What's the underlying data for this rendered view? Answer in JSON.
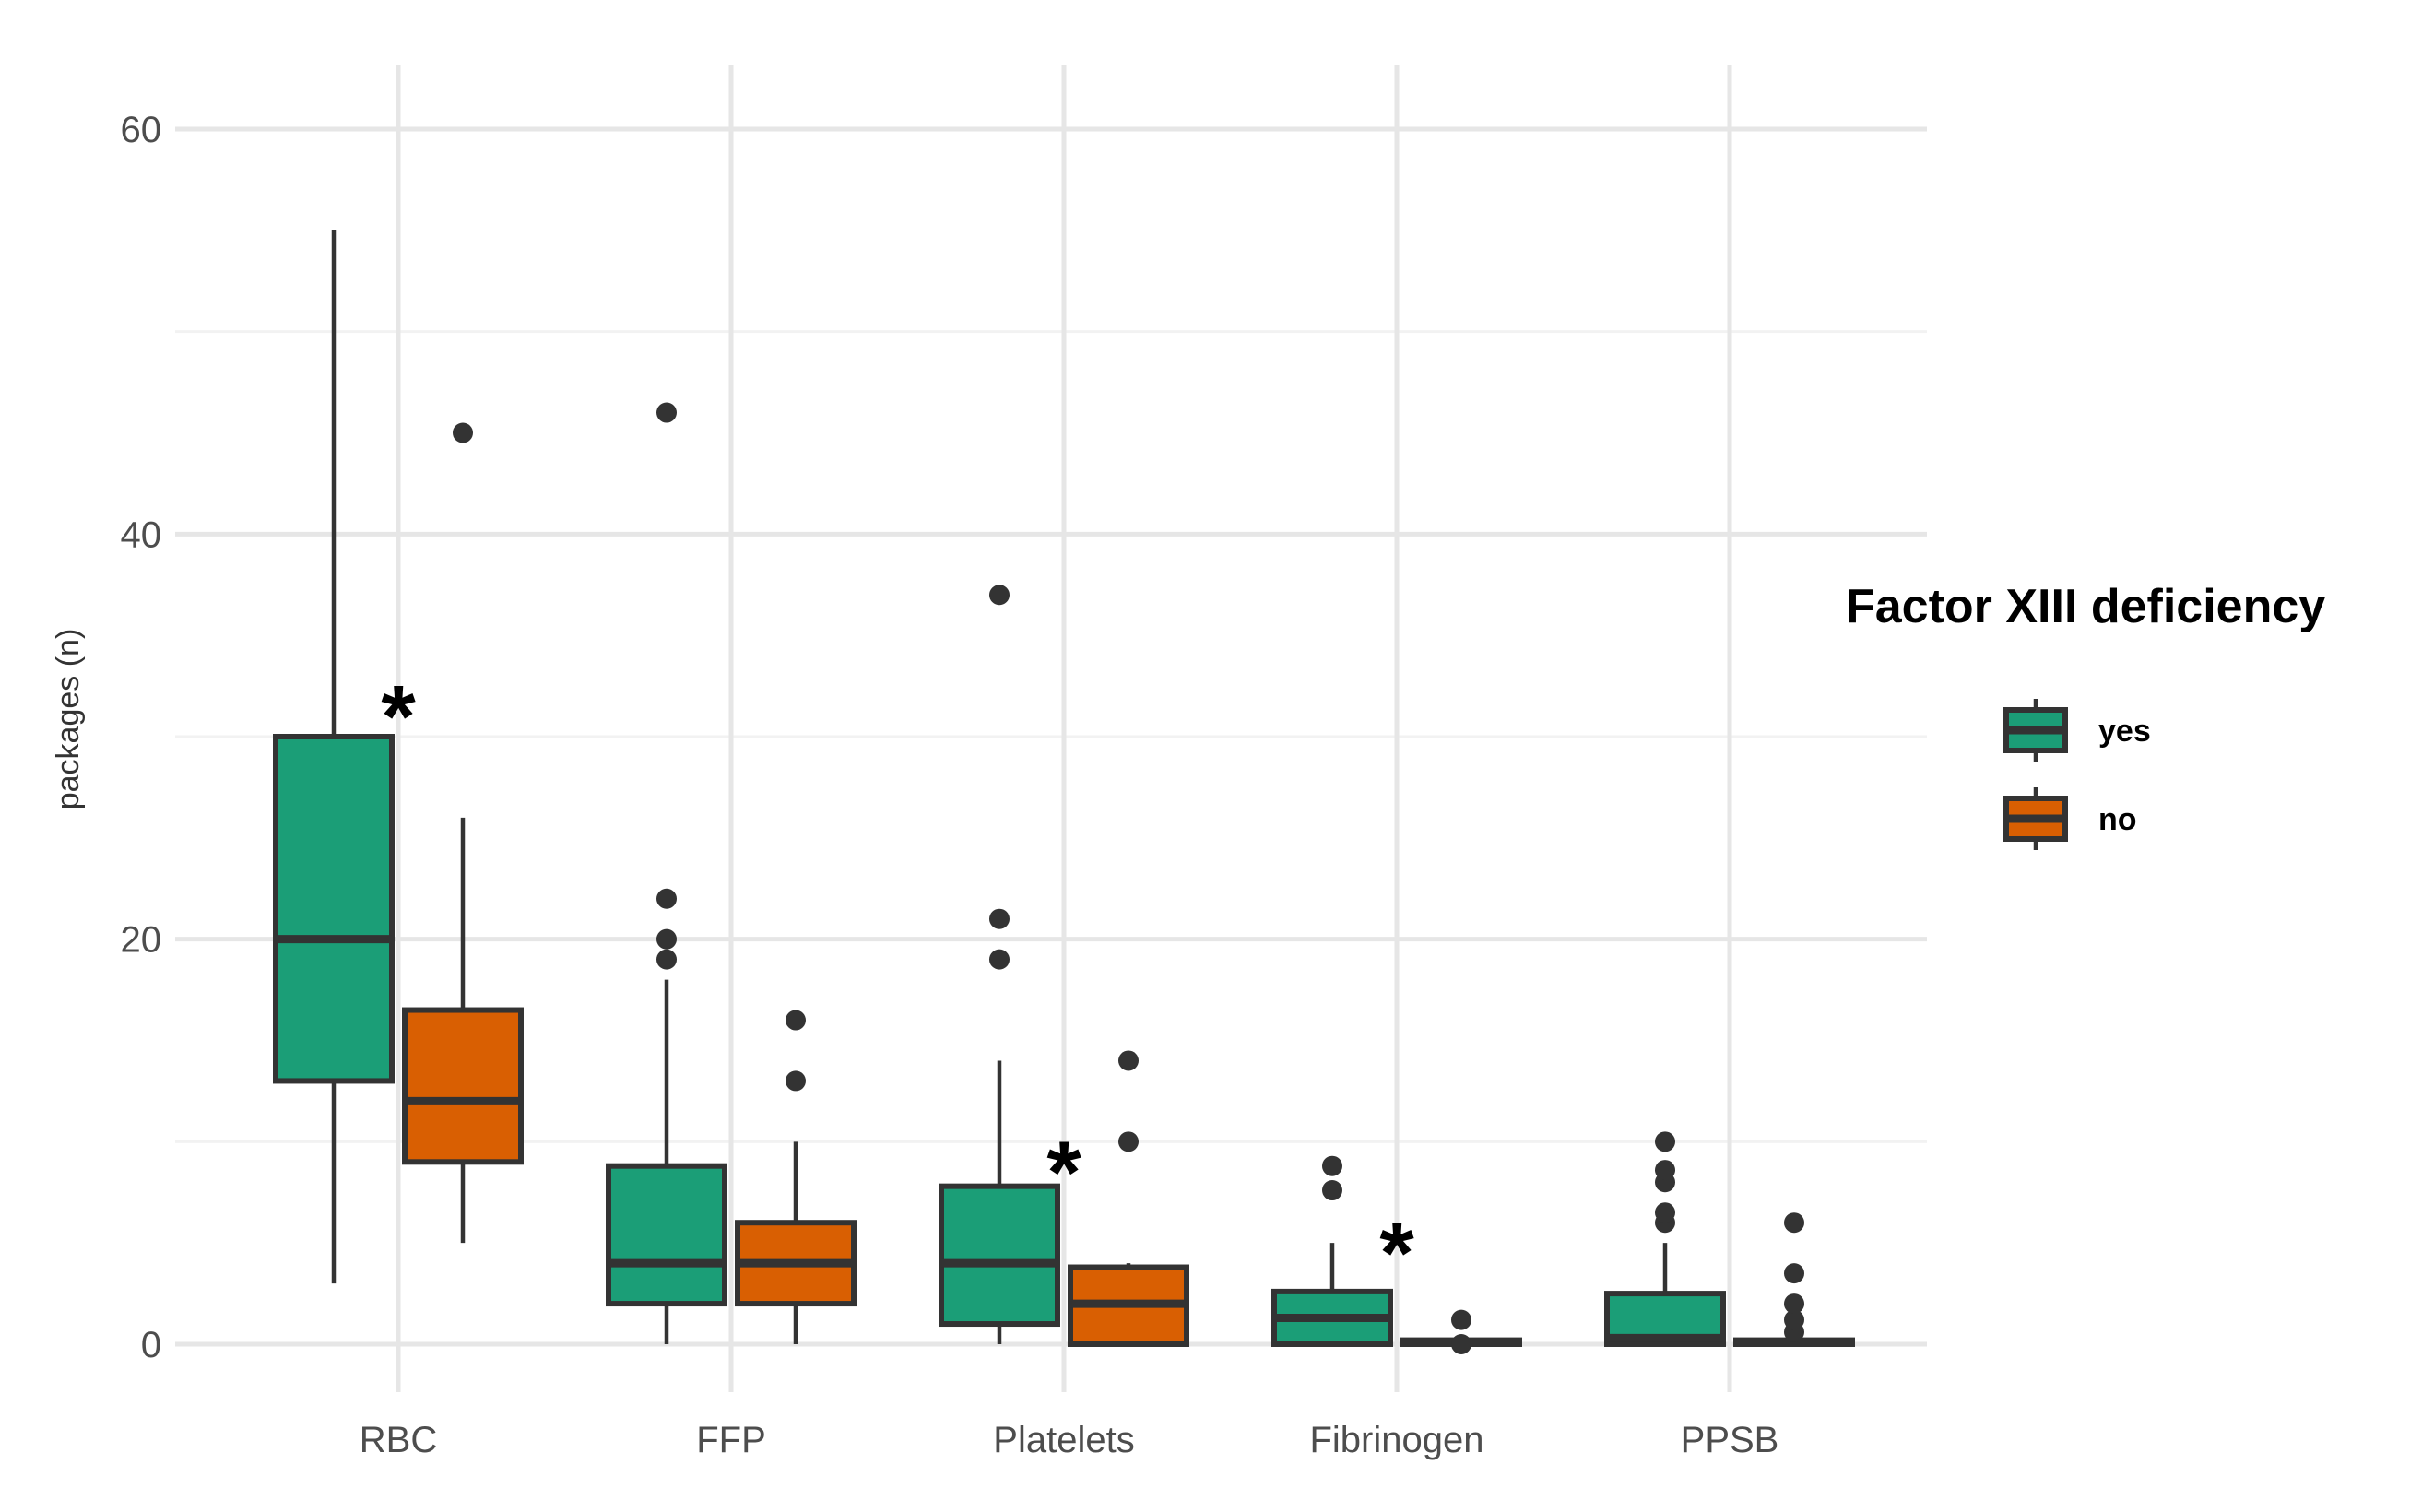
{
  "chart_data": {
    "type": "boxplot",
    "title": "",
    "xlabel": "",
    "ylabel": "packages (n)",
    "ylim": [
      -4,
      64
    ],
    "yticks": [
      0,
      20,
      40,
      60
    ],
    "categories": [
      "RBC",
      "FFP",
      "Platelets",
      "Fibrinogen",
      "PPSB"
    ],
    "legend": {
      "title": "Factor XIII deficiency",
      "position": "right",
      "entries": [
        {
          "name": "yes",
          "color": "#1b9e77"
        },
        {
          "name": "no",
          "color": "#d95f02"
        }
      ]
    },
    "series": [
      {
        "name": "yes",
        "color": "#1b9e77",
        "boxes": [
          {
            "category": "RBC",
            "min": 3,
            "q1": 13,
            "median": 20,
            "q3": 30,
            "max": 55,
            "outliers": []
          },
          {
            "category": "FFP",
            "min": 0,
            "q1": 2,
            "median": 4,
            "q3": 8.8,
            "max": 18,
            "outliers": [
              19,
              20,
              22,
              46
            ]
          },
          {
            "category": "Platelets",
            "min": 0,
            "q1": 1,
            "median": 4,
            "q3": 7.8,
            "max": 14,
            "outliers": [
              19,
              21,
              37
            ]
          },
          {
            "category": "Fibrinogen",
            "min": 0,
            "q1": 0,
            "median": 1.3,
            "q3": 2.6,
            "max": 5,
            "outliers": [
              7.6,
              8.8
            ]
          },
          {
            "category": "PPSB",
            "min": 0,
            "q1": 0,
            "median": 0.3,
            "q3": 2.5,
            "max": 5,
            "outliers": [
              6,
              6.5,
              8,
              8.6,
              10
            ]
          }
        ]
      },
      {
        "name": "no",
        "color": "#d95f02",
        "boxes": [
          {
            "category": "RBC",
            "min": 5,
            "q1": 9,
            "median": 12,
            "q3": 16.5,
            "max": 26,
            "outliers": [
              45
            ]
          },
          {
            "category": "FFP",
            "min": 0,
            "q1": 2,
            "median": 4,
            "q3": 6,
            "max": 10,
            "outliers": [
              13,
              16
            ]
          },
          {
            "category": "Platelets",
            "min": 0,
            "q1": 0,
            "median": 2,
            "q3": 3.8,
            "max": 4,
            "outliers": [
              10,
              14
            ]
          },
          {
            "category": "Fibrinogen",
            "min": 0,
            "q1": 0,
            "median": 0.1,
            "q3": 0.2,
            "max": 0.3,
            "outliers": [
              0,
              1.2
            ]
          },
          {
            "category": "PPSB",
            "min": 0,
            "q1": 0,
            "median": 0.1,
            "q3": 0.2,
            "max": 0.3,
            "outliers": [
              0.6,
              1.2,
              2,
              3.5,
              6
            ]
          }
        ]
      }
    ],
    "annotations": [
      {
        "text": "*",
        "category": "RBC",
        "y": 32
      },
      {
        "text": "*",
        "category": "Platelets",
        "y": 9.5
      },
      {
        "text": "*",
        "category": "Fibrinogen",
        "y": 5.5
      }
    ]
  }
}
